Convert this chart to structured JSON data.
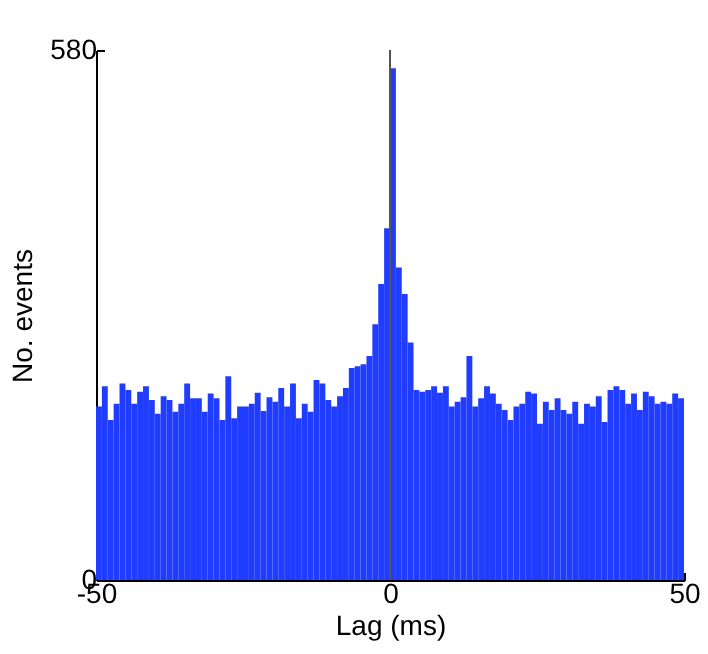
{
  "chart_data": {
    "type": "histogram",
    "xlabel": "Lag (ms)",
    "ylabel": "No. events",
    "color": "#1f3cff",
    "bins": [
      -50,
      -49,
      -48,
      -47,
      -46,
      -45,
      -44,
      -43,
      -42,
      -41,
      -40,
      -39,
      -38,
      -37,
      -36,
      -35,
      -34,
      -33,
      -32,
      -31,
      -30,
      -29,
      -28,
      -27,
      -26,
      -25,
      -24,
      -23,
      -22,
      -21,
      -20,
      -19,
      -18,
      -17,
      -16,
      -15,
      -14,
      -13,
      -12,
      -11,
      -10,
      -9,
      -8,
      -7,
      -6,
      -5,
      -4,
      -3,
      -2,
      -1,
      0,
      1,
      2,
      3,
      4,
      5,
      6,
      7,
      8,
      9,
      10,
      11,
      12,
      13,
      14,
      15,
      16,
      17,
      18,
      19,
      20,
      21,
      22,
      23,
      24,
      25,
      26,
      27,
      28,
      29,
      30,
      31,
      32,
      33,
      34,
      35,
      36,
      37,
      38,
      39,
      40,
      41,
      42,
      43,
      44,
      45,
      46,
      47,
      48,
      49,
      50
    ],
    "values": [
      190,
      212,
      175,
      193,
      215,
      208,
      193,
      206,
      212,
      197,
      182,
      201,
      197,
      184,
      193,
      215,
      199,
      199,
      184,
      204,
      199,
      175,
      223,
      177,
      190,
      190,
      193,
      205,
      185,
      200,
      195,
      210,
      190,
      215,
      177,
      193,
      184,
      219,
      215,
      197,
      190,
      201,
      210,
      232,
      234,
      236,
      245,
      280,
      324,
      385,
      560,
      342,
      313,
      260,
      208,
      206,
      208,
      212,
      205,
      212,
      190,
      195,
      200,
      245,
      190,
      199,
      212,
      204,
      193,
      186,
      175,
      190,
      193,
      206,
      204,
      171,
      195,
      186,
      199,
      186,
      182,
      195,
      171,
      193,
      190,
      201,
      173,
      208,
      212,
      208,
      193,
      204,
      186,
      206,
      201,
      193,
      195,
      193,
      204,
      199
    ],
    "xlim": [
      -50,
      50
    ],
    "xticks": [
      -50,
      0,
      50
    ],
    "ylim": [
      0,
      580
    ],
    "yticks": [
      0,
      580
    ],
    "ref_lines": [
      {
        "axis": "x",
        "value": 0,
        "color": "#555555"
      }
    ]
  }
}
